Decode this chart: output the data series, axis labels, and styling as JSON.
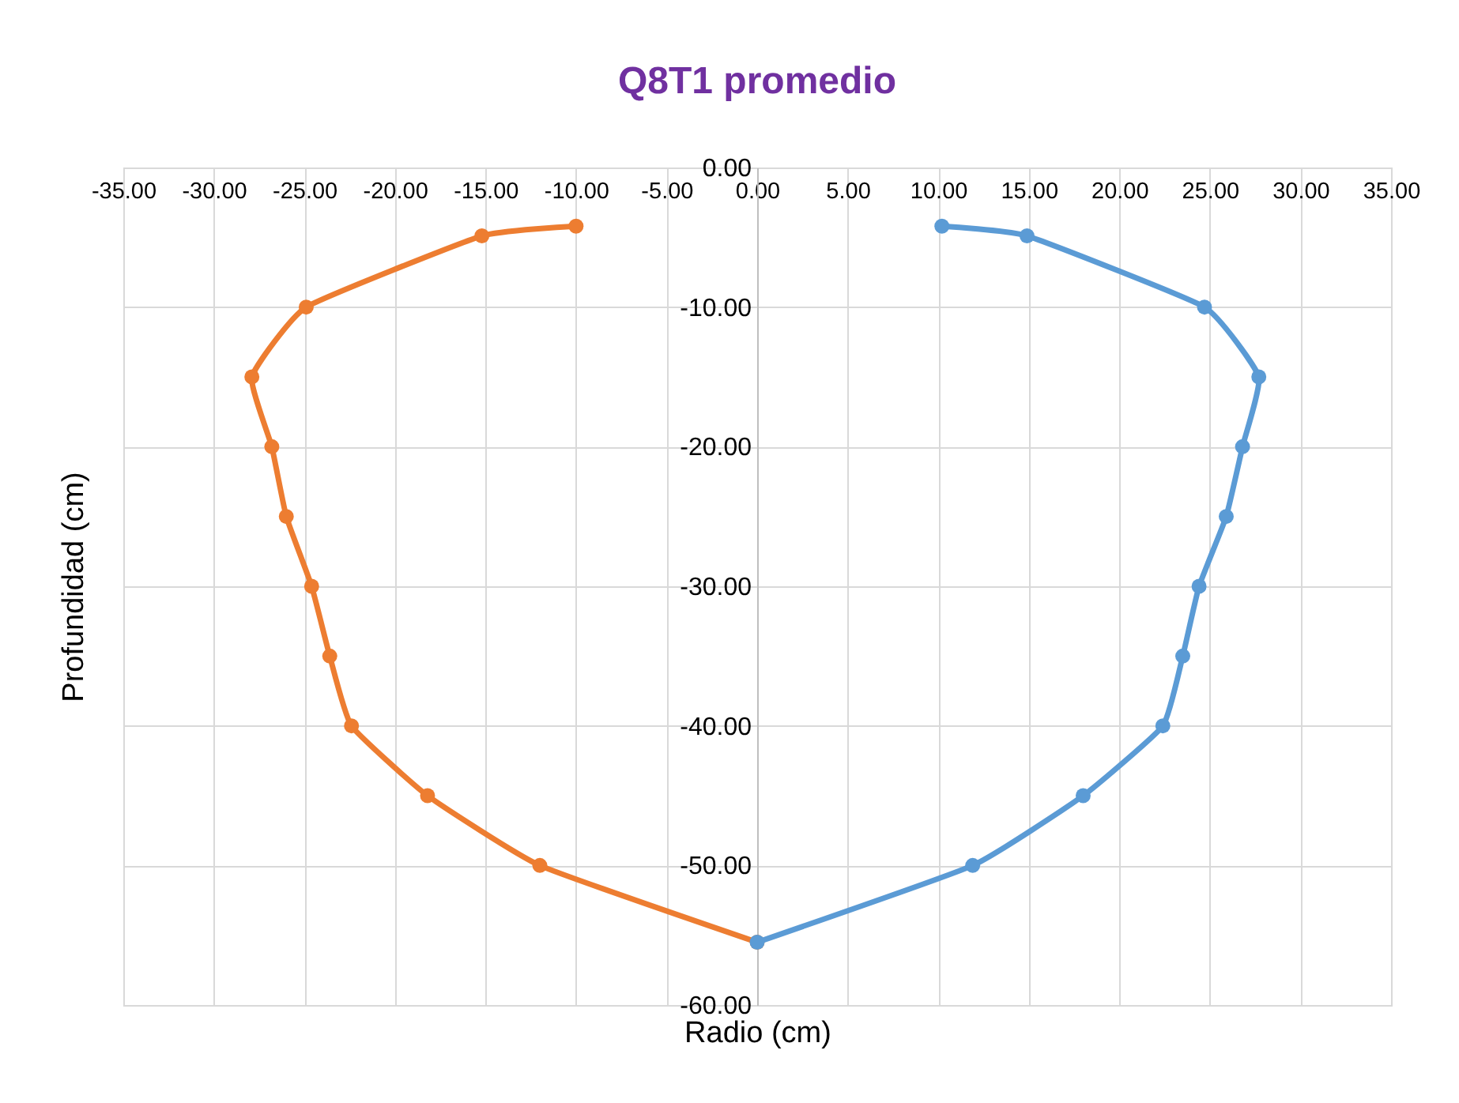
{
  "chart_data": {
    "type": "line",
    "title": "Q8T1 promedio",
    "xlabel": "Radio (cm)",
    "ylabel": "Profundidad (cm)",
    "series": [
      {
        "color": "#ed7d31",
        "x": [
          -10,
          -15.2,
          -24.9,
          -27.9,
          -26.8,
          -26.0,
          -24.6,
          -23.6,
          -22.4,
          -18.2,
          -12.0,
          0
        ],
        "values": [
          -4.2,
          -4.9,
          -10,
          -15,
          -20,
          -25,
          -30,
          -35,
          -40,
          -45,
          -50,
          -55.5
        ]
      },
      {
        "color": "#5b9bd5",
        "x": [
          10.2,
          14.9,
          24.7,
          27.7,
          26.8,
          25.9,
          24.4,
          23.5,
          22.4,
          18.0,
          11.9,
          0
        ],
        "values": [
          -4.2,
          -4.9,
          -10,
          -15,
          -20,
          -25,
          -30,
          -35,
          -40,
          -45,
          -50,
          -55.5
        ]
      }
    ],
    "xlim": [
      -35,
      35
    ],
    "xticks": [
      {
        "value": -35,
        "label": "-35.00"
      },
      {
        "value": -30,
        "label": "-30.00"
      },
      {
        "value": -25,
        "label": "-25.00"
      },
      {
        "value": -20,
        "label": "-20.00"
      },
      {
        "value": -15,
        "label": "-15.00"
      },
      {
        "value": -10,
        "label": "-10.00"
      },
      {
        "value": -5,
        "label": "-5.00"
      },
      {
        "value": 0,
        "label": "0.00"
      },
      {
        "value": 5,
        "label": "5.00"
      },
      {
        "value": 10,
        "label": "10.00"
      },
      {
        "value": 15,
        "label": "15.00"
      },
      {
        "value": 20,
        "label": "20.00"
      },
      {
        "value": 25,
        "label": "25.00"
      },
      {
        "value": 30,
        "label": "30.00"
      },
      {
        "value": 35,
        "label": "35.00"
      }
    ],
    "ylim": [
      -60,
      0
    ],
    "yticks": [
      {
        "value": 0,
        "label": "0.00"
      },
      {
        "value": -10,
        "label": "-10.00"
      },
      {
        "value": -20,
        "label": "-20.00"
      },
      {
        "value": -30,
        "label": "-30.00"
      },
      {
        "value": -40,
        "label": "-40.00"
      },
      {
        "value": -50,
        "label": "-50.00"
      },
      {
        "value": -60,
        "label": "-60.00"
      }
    ],
    "grid": true,
    "marker": "circle",
    "line_style": "solid"
  }
}
